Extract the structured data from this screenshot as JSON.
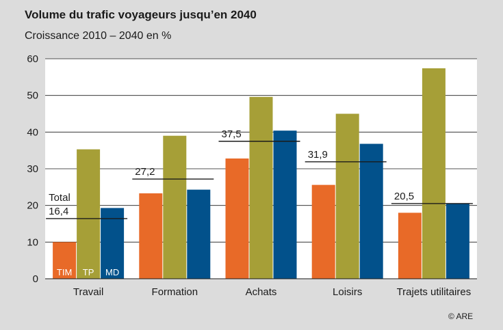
{
  "title": "Volume du trafic voyageurs jusqu’en 2040",
  "subtitle": "Croissance 2010 – 2040 en %",
  "credit": "© ARE",
  "colors": {
    "TIM": "#e86a28",
    "TP": "#a69f37",
    "MD": "#02518b",
    "background": "#dcdcdc",
    "plot_bg": "#ffffff",
    "total_line": "#1a1a1a"
  },
  "chart_data": {
    "type": "bar",
    "ylim": [
      0,
      60
    ],
    "yticks": [
      "0",
      "10",
      "20",
      "30",
      "40",
      "50",
      "60"
    ],
    "grid": true,
    "categories": [
      "Travail",
      "Formation",
      "Achats",
      "Loisirs",
      "Trajets utilitaires"
    ],
    "series": [
      {
        "name": "TIM",
        "values": [
          10,
          23.3,
          32.8,
          25.6,
          18
        ]
      },
      {
        "name": "TP",
        "values": [
          35.3,
          39,
          49.6,
          45,
          57.4
        ]
      },
      {
        "name": "MD",
        "values": [
          19.3,
          24.3,
          40.4,
          36.8,
          20.6
        ]
      }
    ],
    "totals": [
      16.4,
      27.2,
      37.5,
      31.9,
      20.5
    ],
    "total_labels": [
      "16,4",
      "27,2",
      "37,5",
      "31,9",
      "20,5"
    ],
    "total_word": "Total"
  }
}
